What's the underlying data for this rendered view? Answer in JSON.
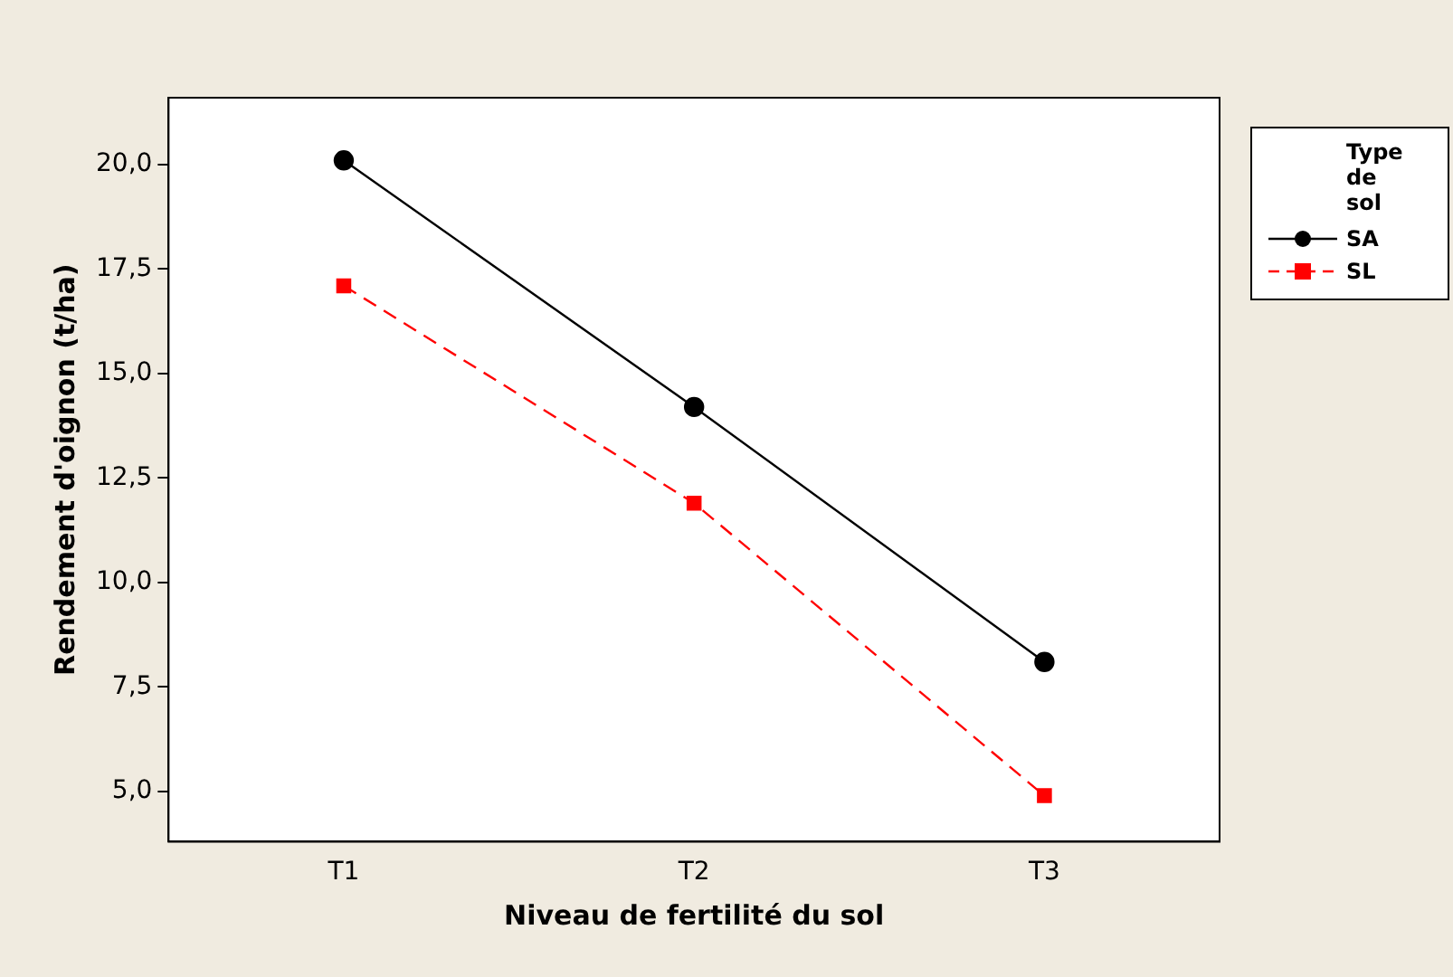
{
  "chart_data": {
    "type": "line",
    "xlabel": "Niveau de fertilité du sol",
    "ylabel": "Rendement d'oignon (t/ha)",
    "legend_title": "Type de sol",
    "categories": [
      "T1",
      "T2",
      "T3"
    ],
    "series": [
      {
        "name": "SA",
        "color": "#000000",
        "values": [
          20.1,
          14.2,
          8.1
        ],
        "marker": "circle",
        "line_style": "solid"
      },
      {
        "name": "SL",
        "color": "#ff0000",
        "values": [
          17.1,
          11.9,
          4.9
        ],
        "marker": "square",
        "line_style": "dashed"
      }
    ],
    "ylim": [
      3.8,
      21.6
    ],
    "yticks": [
      {
        "value": 5,
        "label": "5,0"
      },
      {
        "value": 7.5,
        "label": "7,5"
      },
      {
        "value": 10,
        "label": "10,0"
      },
      {
        "value": 12.5,
        "label": "12,5"
      },
      {
        "value": 15,
        "label": "15,0"
      },
      {
        "value": 17.5,
        "label": "17,5"
      },
      {
        "value": 20,
        "label": "20,0"
      }
    ],
    "grid": false,
    "legend": "right"
  }
}
